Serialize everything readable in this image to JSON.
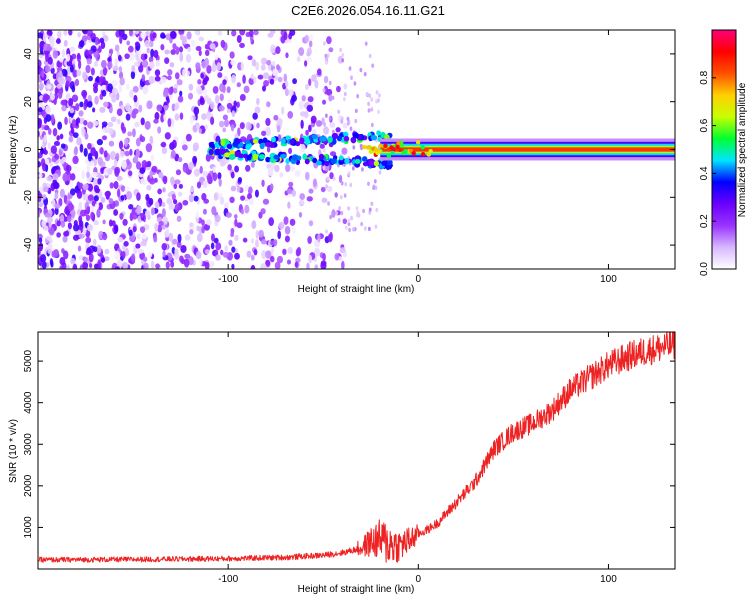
{
  "title": "C2E6.2026.054.16.11.G21",
  "chart_data": [
    {
      "type": "heatmap",
      "title": "C2E6.2026.054.16.11.G21",
      "xlabel": "Height of straight line (km)",
      "ylabel": "Frequency (Hz)",
      "xlim": [
        -200,
        135
      ],
      "ylim": [
        -50,
        50
      ],
      "xticks": [
        -100,
        0,
        100
      ],
      "yticks": [
        -40,
        -20,
        0,
        20,
        40
      ],
      "colorbar": {
        "label": "Normalized spectral amplitude",
        "range": [
          0,
          1
        ],
        "ticks": [
          0.0,
          0.2,
          0.4,
          0.6,
          0.8
        ],
        "colors": [
          "#ffffff",
          "#d8b8ff",
          "#9a33ff",
          "#6a00ff",
          "#0000ff",
          "#00e5ff",
          "#00ff30",
          "#c8ff00",
          "#ffd000",
          "#ff5000",
          "#ff0000",
          "#ff007a"
        ]
      },
      "features": {
        "scatter_region_x": [
          -200,
          -50
        ],
        "carrier_frequency_hz": 0,
        "strong_carrier_from_x": -20
      }
    },
    {
      "type": "line",
      "xlabel": "Height of straight line (km)",
      "ylabel": "SNR (10 * v/v)",
      "xlim": [
        -200,
        135
      ],
      "ylim": [
        0,
        5700
      ],
      "xticks": [
        -100,
        0,
        100
      ],
      "yticks": [
        1000,
        2000,
        3000,
        4000,
        5000
      ],
      "series": [
        {
          "name": "SNR",
          "color": "#ee2222",
          "x": [
            -200,
            -150,
            -100,
            -70,
            -50,
            -40,
            -30,
            -25,
            -20,
            -15,
            -10,
            -5,
            0,
            5,
            10,
            20,
            30,
            40,
            50,
            60,
            70,
            80,
            90,
            100,
            110,
            120,
            135
          ],
          "values": [
            220,
            230,
            250,
            280,
            330,
            390,
            500,
            650,
            700,
            600,
            560,
            680,
            840,
            950,
            1100,
            1600,
            2100,
            2900,
            3300,
            3500,
            3800,
            4300,
            4600,
            4900,
            5100,
            5250,
            5400
          ]
        }
      ]
    }
  ]
}
